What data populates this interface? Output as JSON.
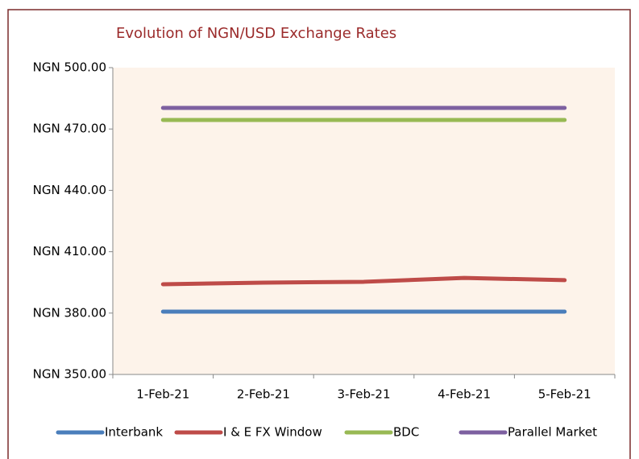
{
  "chart_data": {
    "type": "line",
    "title": "Evolution of NGN/USD Exchange Rates",
    "categories": [
      "1-Feb-21",
      "2-Feb-21",
      "3-Feb-21",
      "4-Feb-21",
      "5-Feb-21"
    ],
    "series": [
      {
        "name": "Interbank",
        "color": "#4a7ebb",
        "values": [
          380.7,
          380.7,
          380.7,
          380.7,
          380.7
        ]
      },
      {
        "name": "I & E FX Window",
        "color": "#be4b48",
        "values": [
          394.1,
          394.9,
          395.3,
          397.2,
          396.1
        ]
      },
      {
        "name": "BDC",
        "color": "#98b954",
        "values": [
          474.4,
          474.4,
          474.4,
          474.4,
          474.4
        ]
      },
      {
        "name": "Parallel Market",
        "color": "#7d60a0",
        "values": [
          480.3,
          480.3,
          480.3,
          480.3,
          480.3
        ]
      }
    ],
    "ylim": [
      350,
      500
    ],
    "yticks": [
      {
        "value": 350,
        "label": "NGN 350.00"
      },
      {
        "value": 380,
        "label": "NGN 380.00"
      },
      {
        "value": 410,
        "label": "NGN 410.00"
      },
      {
        "value": 440,
        "label": "NGN 440.00"
      },
      {
        "value": 470,
        "label": "NGN 470.00"
      },
      {
        "value": 500,
        "label": "NGN 500.00"
      }
    ],
    "legend": "bottom",
    "plot_background": "#fdf3ea"
  }
}
